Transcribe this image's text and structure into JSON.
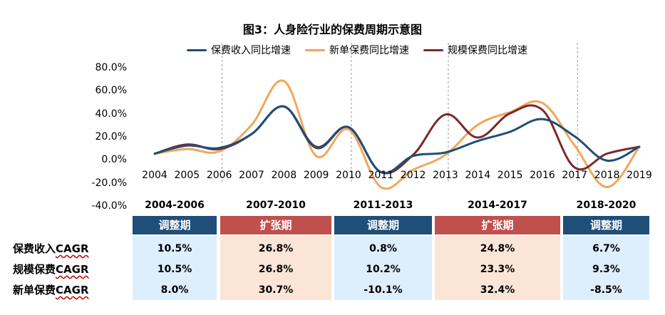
{
  "chart_data": {
    "type": "line",
    "title": "图3：人身险行业的保费周期示意图",
    "categories": [
      "2004",
      "2005",
      "2006",
      "2007",
      "2008",
      "2009",
      "2010",
      "2011",
      "2012",
      "2013",
      "2014",
      "2015",
      "2016",
      "2017",
      "2018",
      "2019"
    ],
    "yticks": [
      "80.0%",
      "60.0%",
      "40.0%",
      "20.0%",
      "0.0%",
      "-20.0%",
      "-40.0%"
    ],
    "ylim": [
      -40,
      80
    ],
    "grid": false,
    "legend_position": "top",
    "series": [
      {
        "name": "保费收入同比增速",
        "color": "#1f4e79",
        "values": [
          6,
          13,
          11,
          23,
          47,
          11,
          29,
          -10,
          4,
          7,
          17,
          25,
          36,
          21,
          0,
          12
        ]
      },
      {
        "name": "新单保费同比增速",
        "color": "#f2a65a",
        "values": [
          6,
          10,
          8,
          31,
          69,
          4,
          27,
          -23,
          -8,
          5,
          31,
          42,
          50,
          13,
          -23,
          12
        ]
      },
      {
        "name": "规模保费同比增速",
        "color": "#7b2a2a",
        "values": [
          6,
          14,
          10,
          23,
          47,
          12,
          29,
          -10,
          5,
          40,
          20,
          41,
          44,
          -6,
          6,
          12
        ]
      }
    ],
    "divider_years": [
      "2006",
      "2010",
      "2013",
      "2017"
    ]
  },
  "periods": [
    {
      "range": "2004-2006",
      "phase": "调整期",
      "phase_color": "#1f4e79",
      "cell_color": "#ddeefc",
      "cagr": [
        "10.5%",
        "10.5%",
        "8.0%"
      ]
    },
    {
      "range": "2007-2010",
      "phase": "扩张期",
      "phase_color": "#c0504d",
      "cell_color": "#fbe5d6",
      "cagr": [
        "26.8%",
        "26.8%",
        "30.7%"
      ]
    },
    {
      "range": "2011-2013",
      "phase": "调整期",
      "phase_color": "#1f4e79",
      "cell_color": "#ddeefc",
      "cagr": [
        "0.8%",
        "10.2%",
        "-10.1%"
      ]
    },
    {
      "range": "2014-2017",
      "phase": "扩张期",
      "phase_color": "#c0504d",
      "cell_color": "#fbe5d6",
      "cagr": [
        "24.8%",
        "23.3%",
        "32.4%"
      ]
    },
    {
      "range": "2018-2020",
      "phase": "调整期",
      "phase_color": "#1f4e79",
      "cell_color": "#ddeefc",
      "cagr": [
        "6.7%",
        "9.3%",
        "-8.5%"
      ]
    }
  ],
  "rows": {
    "row0": {
      "prefix": "保费收入",
      "suffix": "CAGR"
    },
    "row1": {
      "prefix": "规模保费",
      "suffix": "CAGR"
    },
    "row2": {
      "prefix": "新单保费",
      "suffix": "CAGR"
    }
  }
}
